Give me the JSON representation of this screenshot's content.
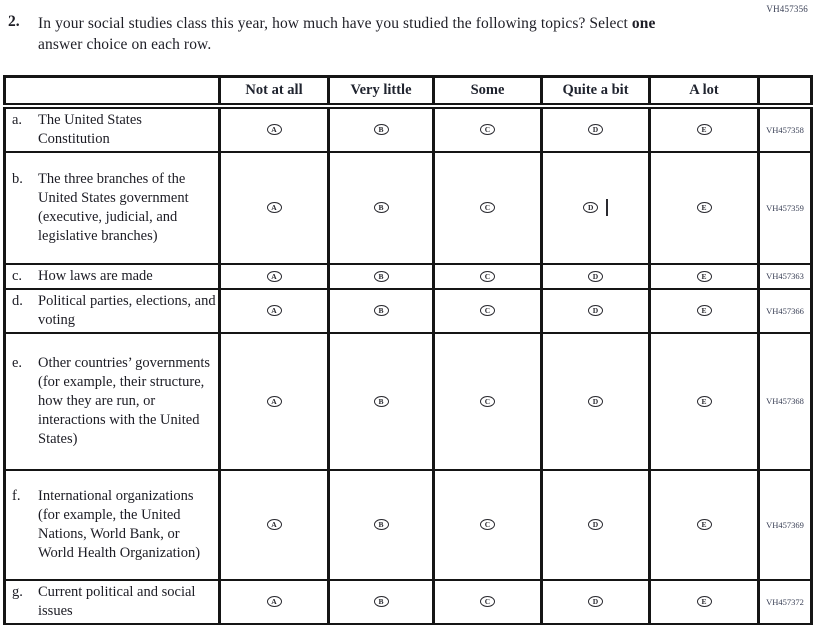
{
  "page": {
    "top_right_code": "VH457356",
    "question": {
      "number": "2.",
      "text_before_bold": "In your social studies class this year, how much have you studied the following topics? Select ",
      "bold_word": "one",
      "text_after_bold": " answer choice on each row."
    }
  },
  "table": {
    "column_headers": [
      "Not at all",
      "Very little",
      "Some",
      "Quite a bit",
      "A lot"
    ],
    "option_letters": [
      "A",
      "B",
      "C",
      "D",
      "E"
    ],
    "rows": [
      {
        "letter": "a.",
        "topic": "The United States Constitution",
        "code": "VH457358",
        "caret_after_option": null
      },
      {
        "letter": "b.",
        "topic": "The three branches of the United States government (executive, judicial, and legislative branches)",
        "code": "VH457359",
        "caret_after_option": "D"
      },
      {
        "letter": "c.",
        "topic": "How laws are made",
        "code": "VH457363",
        "caret_after_option": null
      },
      {
        "letter": "d.",
        "topic": "Political parties, elections, and voting",
        "code": "VH457366",
        "caret_after_option": null
      },
      {
        "letter": "e.",
        "topic": "Other countries’ governments (for example, their structure, how they are run, or interactions with the United States)",
        "code": "VH457368",
        "caret_after_option": null
      },
      {
        "letter": "f.",
        "topic": "International organizations (for example, the United Nations, World Bank, or World Health Organization)",
        "code": "VH457369",
        "caret_after_option": null
      },
      {
        "letter": "g.",
        "topic": "Current political and social issues",
        "code": "VH457372",
        "caret_after_option": null
      }
    ]
  },
  "colors": {
    "border": "#151515",
    "text": "#1c1c24",
    "code_text": "#3a4056"
  }
}
